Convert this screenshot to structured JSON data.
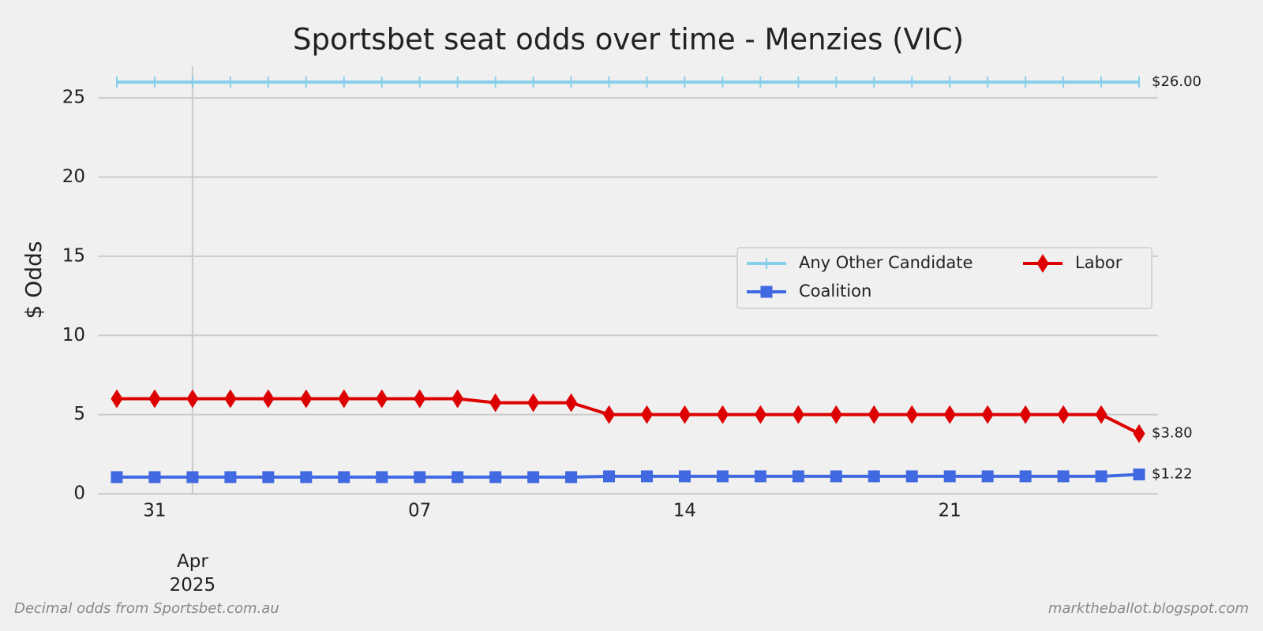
{
  "chart_data": {
    "type": "line",
    "title": "Sportsbet seat odds over time - Menzies (VIC)",
    "y_label": "$ Odds",
    "source_note": "Decimal odds from Sportsbet.com.au",
    "credit": "marktheballot.blogspot.com",
    "x": [
      "2025-03-30",
      "2025-03-31",
      "2025-04-01",
      "2025-04-02",
      "2025-04-03",
      "2025-04-04",
      "2025-04-05",
      "2025-04-06",
      "2025-04-07",
      "2025-04-08",
      "2025-04-09",
      "2025-04-10",
      "2025-04-11",
      "2025-04-12",
      "2025-04-13",
      "2025-04-14",
      "2025-04-15",
      "2025-04-16",
      "2025-04-17",
      "2025-04-18",
      "2025-04-19",
      "2025-04-20",
      "2025-04-21",
      "2025-04-22",
      "2025-04-23",
      "2025-04-24",
      "2025-04-25",
      "2025-04-26"
    ],
    "xlim": [
      "2025-03-29T12:00:00Z",
      "2025-04-26T12:00:00Z"
    ],
    "xticks": [
      {
        "value": "2025-03-31",
        "label": "31"
      },
      {
        "value": "2025-04-01",
        "label": "Apr 2025"
      },
      {
        "value": "2025-04-07",
        "label": "07"
      },
      {
        "value": "2025-04-14",
        "label": "14"
      },
      {
        "value": "2025-04-21",
        "label": "21"
      }
    ],
    "ylim": [
      0,
      27
    ],
    "yticks": [
      0,
      5,
      10,
      15,
      20,
      25
    ],
    "grid": true,
    "legend": "center right",
    "series": [
      {
        "name": "Any Other Candidate",
        "color": "#87ceeb",
        "marker": "vline",
        "values": [
          26,
          26,
          26,
          26,
          26,
          26,
          26,
          26,
          26,
          26,
          26,
          26,
          26,
          26,
          26,
          26,
          26,
          26,
          26,
          26,
          26,
          26,
          26,
          26,
          26,
          26,
          26,
          26
        ],
        "value_labels": [
          null,
          null,
          null,
          null,
          null,
          null,
          null,
          null,
          null,
          null,
          null,
          null,
          null,
          null,
          null,
          null,
          null,
          null,
          null,
          null,
          null,
          null,
          null,
          null,
          null,
          null,
          null,
          "$26.00"
        ]
      },
      {
        "name": "Coalition",
        "color": "#4169e1",
        "marker": "square",
        "values": [
          1.05,
          1.05,
          1.05,
          1.05,
          1.05,
          1.05,
          1.05,
          1.05,
          1.05,
          1.05,
          1.05,
          1.05,
          1.05,
          1.1,
          1.1,
          1.1,
          1.1,
          1.1,
          1.1,
          1.1,
          1.1,
          1.1,
          1.1,
          1.1,
          1.1,
          1.1,
          1.1,
          1.22
        ],
        "value_labels": [
          null,
          null,
          null,
          null,
          null,
          null,
          null,
          null,
          null,
          null,
          null,
          null,
          null,
          null,
          null,
          null,
          null,
          null,
          null,
          null,
          null,
          null,
          null,
          null,
          null,
          null,
          null,
          "$1.22"
        ]
      },
      {
        "name": "Labor",
        "color": "#dd0000",
        "marker": "diamond",
        "values": [
          6,
          6,
          6,
          6,
          6,
          6,
          6,
          6,
          6,
          6,
          5.75,
          5.75,
          5.75,
          5,
          5,
          5,
          5,
          5,
          5,
          5,
          5,
          5,
          5,
          5,
          5,
          5,
          5,
          3.8
        ],
        "value_labels": [
          null,
          null,
          null,
          null,
          null,
          null,
          null,
          null,
          null,
          null,
          null,
          null,
          null,
          null,
          null,
          null,
          null,
          null,
          null,
          null,
          null,
          null,
          null,
          null,
          null,
          null,
          null,
          "$3.80"
        ]
      }
    ]
  }
}
